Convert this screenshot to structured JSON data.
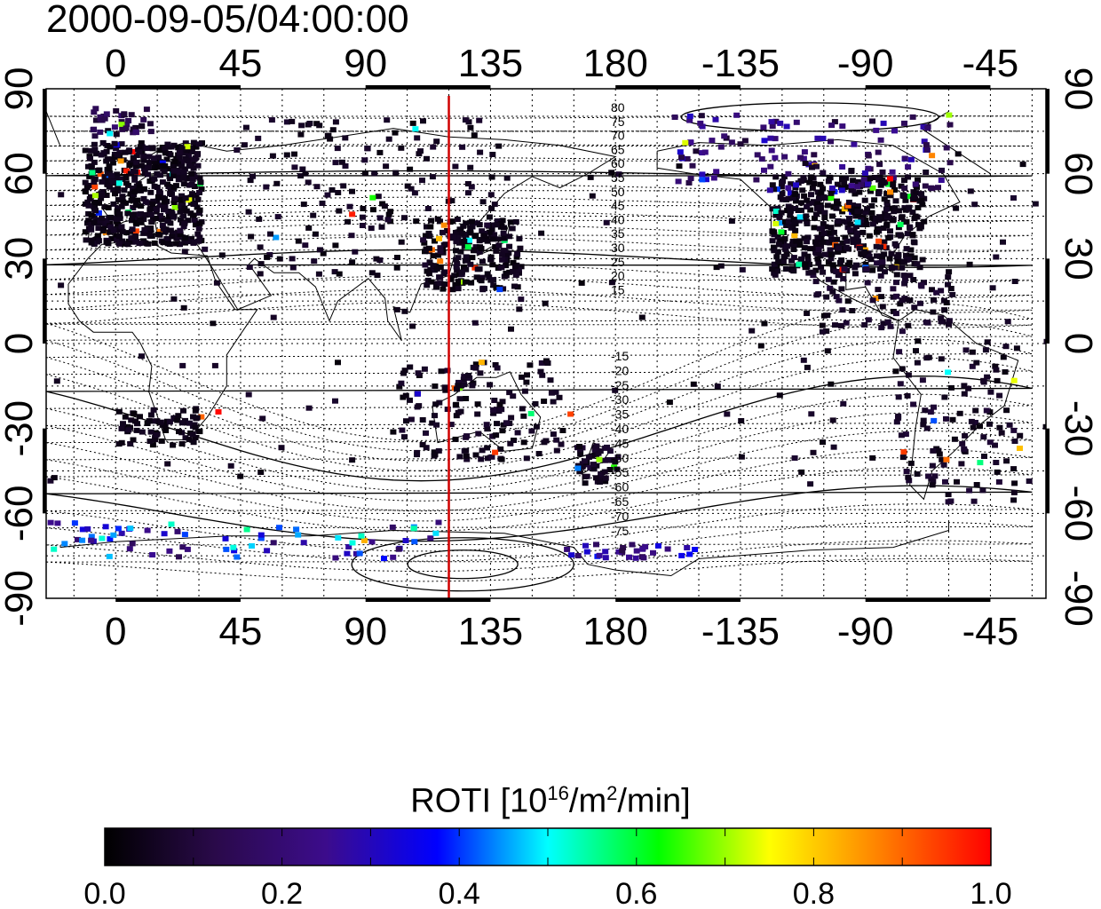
{
  "title": "2000-09-05/04:00:00",
  "colorbar": {
    "label_prefix": "ROTI  [10",
    "label_exp1": "16",
    "label_mid": "/m",
    "label_exp2": "2",
    "label_suffix": "/min]",
    "ticks": [
      "0.0",
      "0.2",
      "0.4",
      "0.6",
      "0.8",
      "1.0"
    ],
    "range": [
      0.0,
      1.0
    ],
    "colormap": [
      "#000000",
      "#2a0a4a",
      "#3c0c8c",
      "#0000ff",
      "#00ffff",
      "#00ff00",
      "#ffff00",
      "#ff8000",
      "#ff0000"
    ]
  },
  "map": {
    "lon_ticks": [
      "0",
      "45",
      "90",
      "135",
      "180",
      "-135",
      "-90",
      "-45"
    ],
    "lat_ticks": [
      "90",
      "60",
      "30",
      "0",
      "-30",
      "-60",
      "-90"
    ],
    "meridian_line_lon": 120,
    "meridian_line_color": "#d00000",
    "contour_labels_north": [
      "80",
      "75",
      "70",
      "65",
      "60",
      "55",
      "50",
      "45",
      "40",
      "35",
      "30",
      "25",
      "20",
      "15"
    ],
    "contour_labels_south": [
      "-15",
      "-20",
      "-25",
      "-30",
      "-35",
      "-40",
      "-45",
      "-50",
      "-55",
      "-60",
      "-65",
      "-70",
      "-75"
    ]
  }
}
